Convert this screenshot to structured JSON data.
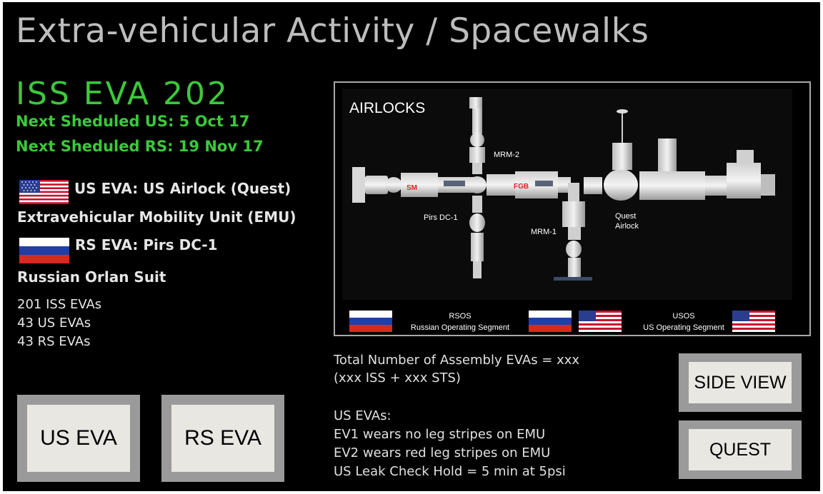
{
  "title": "Extra-vehicular Activity / Spacewalks",
  "eva_count": "ISS EVA 202",
  "next_us": "Next Sheduled US: 5 Oct 17",
  "next_rs": "Next Sheduled RS: 19 Nov 17",
  "us_airlock": "US EVA: US Airlock (Quest)",
  "us_suit": "Extravehicular Mobility Unit (EMU)",
  "rs_airlock": "RS EVA: Pirs DC-1",
  "rs_suit": "Russian Orlan Suit",
  "stats": [
    "201 ISS EVAs",
    "43 US EVAs",
    "43 RS EVAs"
  ],
  "buttons": {
    "us_eva": "US EVA",
    "rs_eva": "RS EVA",
    "side_view": "SIDE VIEW",
    "quest": "QUEST"
  },
  "diagram": {
    "heading": "AIRLOCKS",
    "modules": {
      "sm": "SM",
      "fgb": "FGB",
      "mrm2": "MRM-2",
      "pirs": "Pirs DC-1",
      "mrm1": "MRM-1",
      "quest1": "Quest",
      "quest2": "Airlock"
    },
    "legend": {
      "rsos": "RSOS",
      "rsos_sub": "Russian Operating Segment",
      "usos": "USOS",
      "usos_sub": "US Operating Segment"
    }
  },
  "info": {
    "total": "Total Number of Assembly EVAs = xxx",
    "breakdown": "(xxx ISS + xxx STS)",
    "us_evas": "US EVAs:",
    "ev1": "EV1 wears no leg stripes on EMU",
    "ev2": "EV2 wears red leg stripes on EMU",
    "leak": "US Leak Check Hold = 5 min at 5psi"
  },
  "colors": {
    "accent_green": "#3cc83c",
    "title_gray": "#bdbdbd",
    "module_label_red": "#e02020"
  }
}
